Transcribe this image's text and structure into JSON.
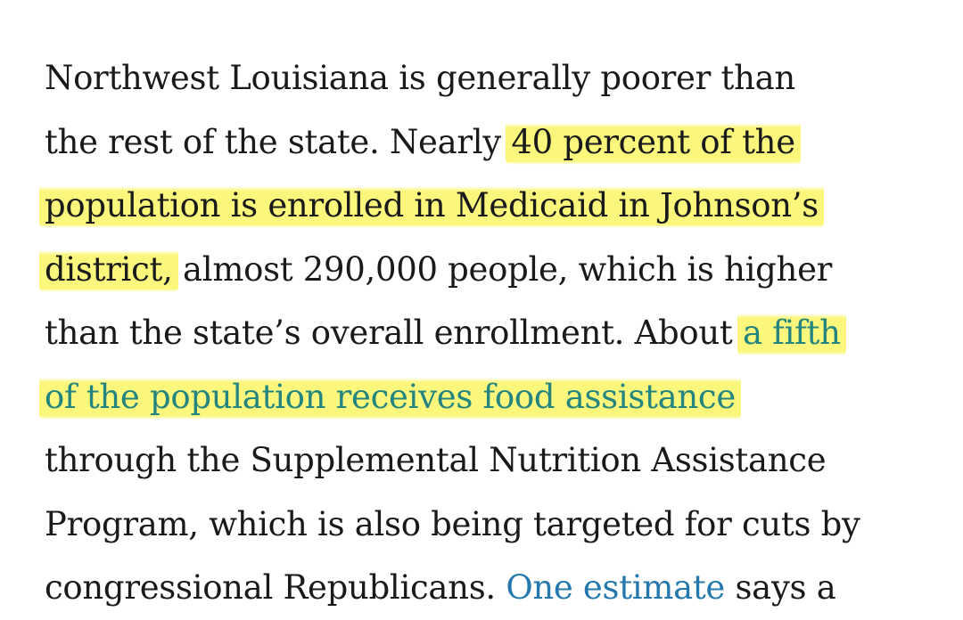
{
  "article": {
    "lines": [
      {
        "text": "Northwest Louisiana is generally poorer than"
      },
      {
        "pre": "the rest of the state. Nearly ",
        "hl": "40 percent of the"
      },
      {
        "hl": "population is enrolled in Medicaid in Johnson’s"
      },
      {
        "hl": "district,",
        "post": " almost 290,000 people, which is higher"
      },
      {
        "pre": "than the state’s overall enrollment. About ",
        "link": "a fifth"
      },
      {
        "link": "of the population receives food assistance"
      },
      {
        "text": "through the Supplemental Nutrition Assistance"
      },
      {
        "text": "Program, which is also being targeted for cuts by"
      },
      {
        "pre": "congressional Republicans. ",
        "link": "One estimate",
        "post": " says a"
      }
    ]
  },
  "colors": {
    "text": "#1a1a1a",
    "link": "#2478ad",
    "highlight": "#faf66e"
  }
}
